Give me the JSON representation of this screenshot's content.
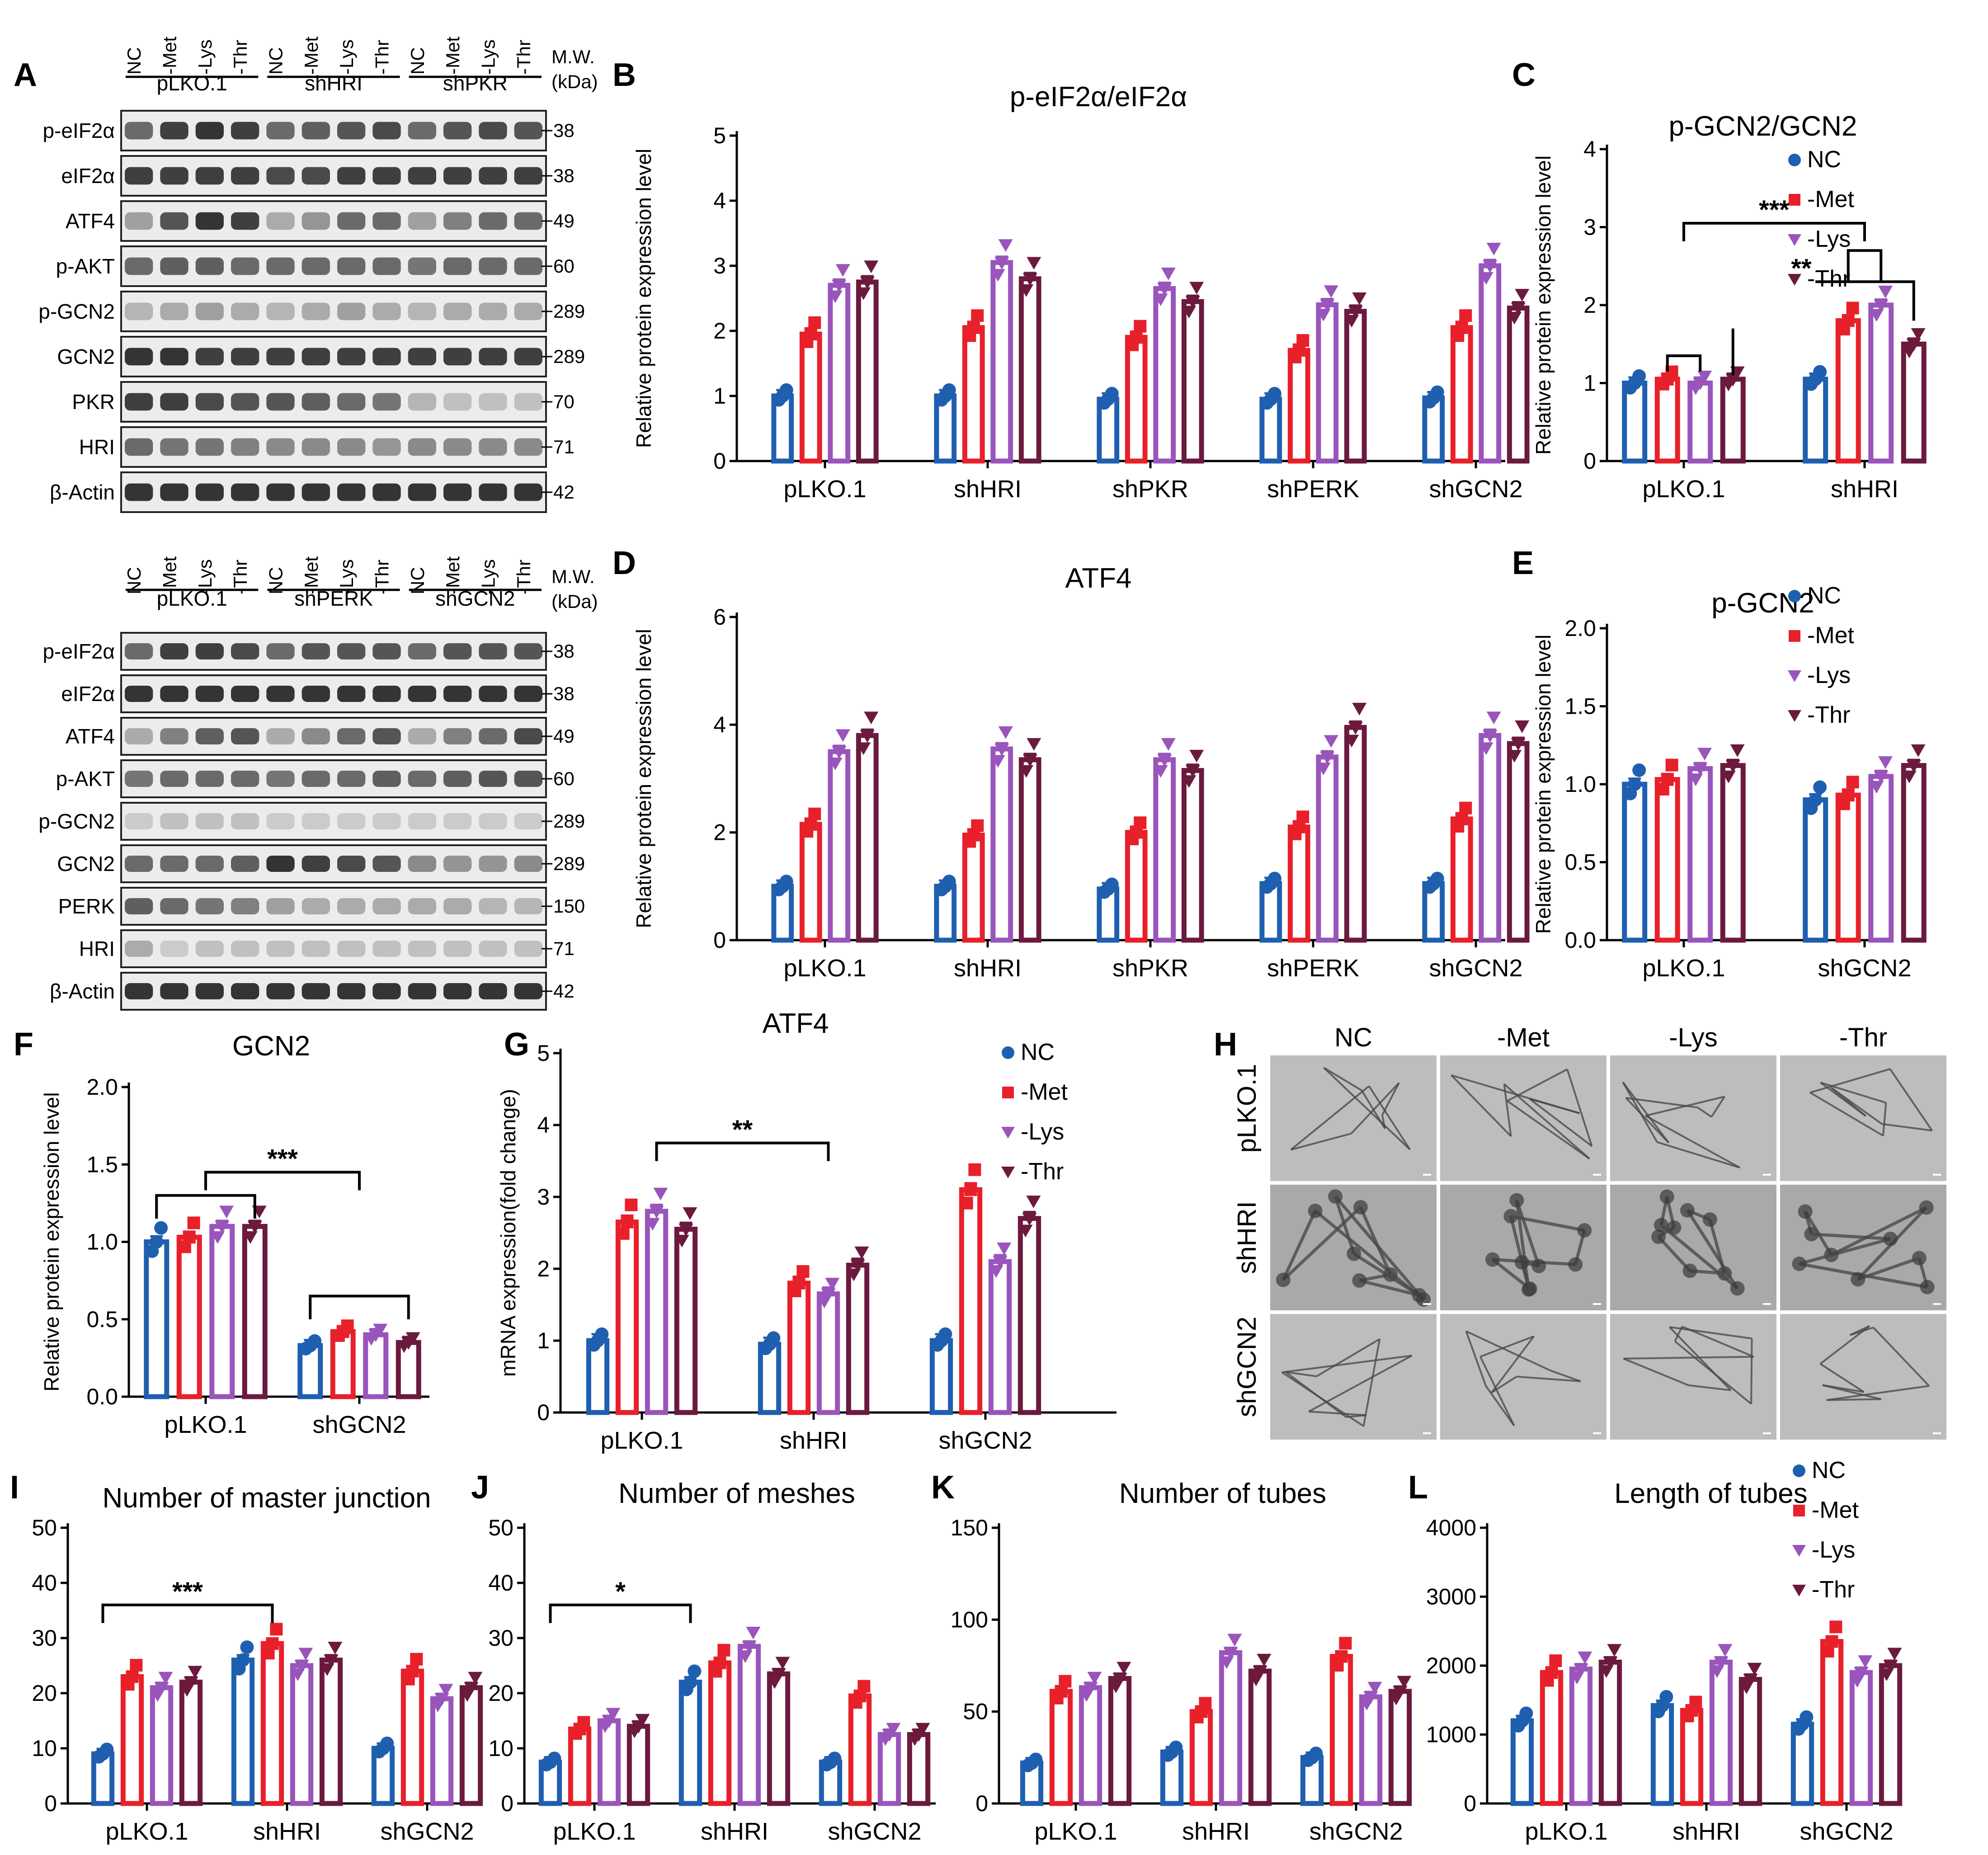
{
  "colors": {
    "NC": "#1f5fb0",
    "-Met": "#e8202a",
    "-Lys": "#9955bb",
    "-Thr": "#6b1a3e"
  },
  "legend": [
    "NC",
    "-Met",
    "-Lys",
    "-Thr"
  ],
  "blots": [
    {
      "panel": "A",
      "lanes": [
        "NC",
        "-Met",
        "-Lys",
        "-Thr",
        "NC",
        "-Met",
        "-Lys",
        "-Thr",
        "NC",
        "-Met",
        "-Lys",
        "-Thr"
      ],
      "groups": [
        "pLKO.1",
        "shHRI",
        "shPKR"
      ],
      "mw_title": "M.W.",
      "mw_unit": "(kDa)",
      "proteins": [
        {
          "name": "p-eIF2α",
          "mw": "38",
          "intensity": [
            0.6,
            0.8,
            0.85,
            0.8,
            0.6,
            0.65,
            0.7,
            0.75,
            0.6,
            0.7,
            0.75,
            0.7
          ]
        },
        {
          "name": "eIF2α",
          "mw": "38",
          "intensity": [
            0.8,
            0.8,
            0.8,
            0.8,
            0.75,
            0.75,
            0.8,
            0.8,
            0.8,
            0.8,
            0.8,
            0.8
          ]
        },
        {
          "name": "ATF4",
          "mw": "49",
          "intensity": [
            0.35,
            0.7,
            0.85,
            0.8,
            0.3,
            0.4,
            0.6,
            0.6,
            0.35,
            0.5,
            0.6,
            0.6
          ]
        },
        {
          "name": "p-AKT",
          "mw": "60",
          "intensity": [
            0.6,
            0.65,
            0.65,
            0.6,
            0.6,
            0.6,
            0.6,
            0.6,
            0.55,
            0.6,
            0.6,
            0.6
          ]
        },
        {
          "name": "p-GCN2",
          "mw": "289",
          "intensity": [
            0.25,
            0.3,
            0.35,
            0.3,
            0.25,
            0.3,
            0.35,
            0.3,
            0.25,
            0.3,
            0.3,
            0.3
          ]
        },
        {
          "name": "GCN2",
          "mw": "289",
          "intensity": [
            0.85,
            0.85,
            0.8,
            0.8,
            0.8,
            0.8,
            0.8,
            0.8,
            0.8,
            0.8,
            0.8,
            0.8
          ]
        },
        {
          "name": "PKR",
          "mw": "70",
          "intensity": [
            0.8,
            0.8,
            0.75,
            0.7,
            0.7,
            0.65,
            0.6,
            0.55,
            0.25,
            0.2,
            0.2,
            0.2
          ]
        },
        {
          "name": "HRI",
          "mw": "71",
          "intensity": [
            0.6,
            0.55,
            0.55,
            0.5,
            0.45,
            0.45,
            0.45,
            0.4,
            0.45,
            0.45,
            0.45,
            0.45
          ]
        },
        {
          "name": "β-Actin",
          "mw": "42",
          "intensity": [
            0.85,
            0.85,
            0.85,
            0.85,
            0.85,
            0.85,
            0.85,
            0.85,
            0.85,
            0.85,
            0.85,
            0.85
          ]
        }
      ]
    },
    {
      "panel": "",
      "lanes": [
        "NC",
        "-Met",
        "-Lys",
        "-Thr",
        "NC",
        "-Met",
        "-Lys",
        "-Thr",
        "NC",
        "-Met",
        "-Lys",
        "-Thr"
      ],
      "groups": [
        "pLKO.1",
        "shPERK",
        "shGCN2"
      ],
      "mw_title": "M.W.",
      "mw_unit": "(kDa)",
      "proteins": [
        {
          "name": "p-eIF2α",
          "mw": "38",
          "intensity": [
            0.6,
            0.8,
            0.8,
            0.75,
            0.6,
            0.7,
            0.7,
            0.7,
            0.6,
            0.7,
            0.7,
            0.7
          ]
        },
        {
          "name": "eIF2α",
          "mw": "38",
          "intensity": [
            0.85,
            0.85,
            0.85,
            0.85,
            0.85,
            0.85,
            0.85,
            0.85,
            0.85,
            0.85,
            0.85,
            0.85
          ]
        },
        {
          "name": "ATF4",
          "mw": "49",
          "intensity": [
            0.3,
            0.5,
            0.65,
            0.7,
            0.3,
            0.45,
            0.6,
            0.7,
            0.3,
            0.5,
            0.6,
            0.75
          ]
        },
        {
          "name": "p-AKT",
          "mw": "60",
          "intensity": [
            0.55,
            0.6,
            0.6,
            0.6,
            0.55,
            0.6,
            0.6,
            0.65,
            0.6,
            0.65,
            0.7,
            0.7
          ]
        },
        {
          "name": "p-GCN2",
          "mw": "289",
          "intensity": [
            0.15,
            0.2,
            0.2,
            0.2,
            0.15,
            0.15,
            0.15,
            0.15,
            0.15,
            0.15,
            0.15,
            0.15
          ]
        },
        {
          "name": "GCN2",
          "mw": "289",
          "intensity": [
            0.6,
            0.6,
            0.6,
            0.65,
            0.85,
            0.8,
            0.75,
            0.7,
            0.45,
            0.4,
            0.4,
            0.45
          ]
        },
        {
          "name": "PERK",
          "mw": "150",
          "intensity": [
            0.65,
            0.6,
            0.55,
            0.5,
            0.35,
            0.3,
            0.3,
            0.3,
            0.3,
            0.3,
            0.25,
            0.25
          ]
        },
        {
          "name": "HRI",
          "mw": "71",
          "intensity": [
            0.3,
            0.15,
            0.2,
            0.2,
            0.2,
            0.2,
            0.2,
            0.2,
            0.2,
            0.2,
            0.2,
            0.2
          ]
        },
        {
          "name": "β-Actin",
          "mw": "42",
          "intensity": [
            0.85,
            0.85,
            0.85,
            0.85,
            0.85,
            0.85,
            0.85,
            0.85,
            0.85,
            0.85,
            0.85,
            0.85
          ]
        }
      ]
    }
  ],
  "micrographs": {
    "panel": "H",
    "columns": [
      "NC",
      "-Met",
      "-Lys",
      "-Thr"
    ],
    "rows": [
      "pLKO.1",
      "shHRI",
      "shGCN2"
    ]
  },
  "chart_data": [
    {
      "panel": "B",
      "type": "bar",
      "title": "p-eIF2α/eIF2α",
      "ylabel": "Relative protein expression level",
      "ylim": [
        0,
        5
      ],
      "yticks": [
        0,
        1,
        2,
        3,
        4,
        5
      ],
      "categories": [
        "pLKO.1",
        "shHRI",
        "shPKR",
        "shPERK",
        "shGCN2"
      ],
      "series": [
        {
          "name": "NC",
          "values": [
            1.0,
            1.0,
            0.95,
            0.95,
            0.97
          ]
        },
        {
          "name": "-Met",
          "values": [
            1.95,
            2.05,
            1.9,
            1.7,
            2.05
          ]
        },
        {
          "name": "-Lys",
          "values": [
            2.7,
            3.05,
            2.65,
            2.4,
            3.0
          ]
        },
        {
          "name": "-Thr",
          "values": [
            2.75,
            2.8,
            2.45,
            2.3,
            2.35
          ]
        }
      ],
      "legend": false,
      "annotations": []
    },
    {
      "panel": "C",
      "type": "bar",
      "title": "p-GCN2/GCN2",
      "ylabel": "Relative protein expression level",
      "ylim": [
        0,
        4
      ],
      "yticks": [
        0,
        1,
        2,
        3,
        4
      ],
      "categories": [
        "pLKO.1",
        "shHRI"
      ],
      "series": [
        {
          "name": "NC",
          "values": [
            1.0,
            1.05
          ]
        },
        {
          "name": "-Met",
          "values": [
            1.05,
            1.8
          ]
        },
        {
          "name": "-Lys",
          "values": [
            1.0,
            2.0
          ]
        },
        {
          "name": "-Thr",
          "values": [
            1.05,
            1.5
          ]
        }
      ],
      "legend": true,
      "annotations": [
        "***",
        "**"
      ]
    },
    {
      "panel": "D",
      "type": "bar",
      "title": "ATF4",
      "ylabel": "Relative protein expression level",
      "ylim": [
        0,
        6
      ],
      "yticks": [
        0,
        2,
        4,
        6
      ],
      "categories": [
        "pLKO.1",
        "shHRI",
        "shPKR",
        "shPERK",
        "shGCN2"
      ],
      "series": [
        {
          "name": "NC",
          "values": [
            1.0,
            1.0,
            0.95,
            1.05,
            1.05
          ]
        },
        {
          "name": "-Met",
          "values": [
            2.15,
            1.95,
            2.0,
            2.1,
            2.25
          ]
        },
        {
          "name": "-Lys",
          "values": [
            3.5,
            3.55,
            3.35,
            3.4,
            3.8
          ]
        },
        {
          "name": "-Thr",
          "values": [
            3.8,
            3.35,
            3.15,
            3.95,
            3.65
          ]
        }
      ],
      "legend": false,
      "annotations": []
    },
    {
      "panel": "E",
      "type": "bar",
      "title": "p-GCN2",
      "ylabel": "Relative protein expression level",
      "ylim": [
        0,
        2
      ],
      "yticks": [
        "0.0",
        "0.5",
        "1.0",
        "1.5",
        "2.0"
      ],
      "categories": [
        "pLKO.1",
        "shGCN2"
      ],
      "series": [
        {
          "name": "NC",
          "values": [
            1.0,
            0.9
          ]
        },
        {
          "name": "-Met",
          "values": [
            1.03,
            0.93
          ]
        },
        {
          "name": "-Lys",
          "values": [
            1.1,
            1.05
          ]
        },
        {
          "name": "-Thr",
          "values": [
            1.12,
            1.12
          ]
        }
      ],
      "legend": true,
      "annotations": []
    },
    {
      "panel": "F",
      "type": "bar",
      "title": "GCN2",
      "ylabel": "Relative protein expression level",
      "ylim": [
        0,
        2
      ],
      "yticks": [
        "0.0",
        "0.5",
        "1.0",
        "1.5",
        "2.0"
      ],
      "categories": [
        "pLKO.1",
        "shGCN2"
      ],
      "series": [
        {
          "name": "NC",
          "values": [
            1.0,
            0.33
          ]
        },
        {
          "name": "-Met",
          "values": [
            1.03,
            0.42
          ]
        },
        {
          "name": "-Lys",
          "values": [
            1.1,
            0.4
          ]
        },
        {
          "name": "-Thr",
          "values": [
            1.1,
            0.35
          ]
        }
      ],
      "legend": false,
      "annotations": [
        "***"
      ]
    },
    {
      "panel": "G",
      "type": "bar",
      "title": "ATF4",
      "ylabel": "mRNA expression(fold change)",
      "ylim": [
        0,
        5
      ],
      "yticks": [
        0,
        1,
        2,
        3,
        4,
        5
      ],
      "categories": [
        "pLKO.1",
        "shHRI",
        "shGCN2"
      ],
      "series": [
        {
          "name": "NC",
          "values": [
            1.0,
            0.95,
            1.0
          ]
        },
        {
          "name": "-Met",
          "values": [
            2.65,
            1.8,
            3.1
          ]
        },
        {
          "name": "-Lys",
          "values": [
            2.8,
            1.65,
            2.1
          ]
        },
        {
          "name": "-Thr",
          "values": [
            2.55,
            2.05,
            2.7
          ]
        }
      ],
      "legend": true,
      "annotations": [
        "**"
      ]
    },
    {
      "panel": "I",
      "type": "bar",
      "title": "Number of master junction",
      "ylabel": "",
      "ylim": [
        0,
        50
      ],
      "yticks": [
        0,
        10,
        20,
        30,
        40,
        50
      ],
      "categories": [
        "pLKO.1",
        "shHRI",
        "shGCN2"
      ],
      "series": [
        {
          "name": "NC",
          "values": [
            9,
            26,
            10
          ]
        },
        {
          "name": "-Met",
          "values": [
            23,
            29,
            24
          ]
        },
        {
          "name": "-Lys",
          "values": [
            21,
            25,
            19
          ]
        },
        {
          "name": "-Thr",
          "values": [
            22,
            26,
            21
          ]
        }
      ],
      "legend": false,
      "annotations": [
        "***"
      ]
    },
    {
      "panel": "J",
      "type": "bar",
      "title": "Number of meshes",
      "ylabel": "",
      "ylim": [
        0,
        50
      ],
      "yticks": [
        0,
        10,
        20,
        30,
        40,
        50
      ],
      "categories": [
        "pLKO.1",
        "shHRI",
        "shGCN2"
      ],
      "series": [
        {
          "name": "NC",
          "values": [
            7.5,
            22,
            7.5
          ]
        },
        {
          "name": "-Met",
          "values": [
            13.5,
            25.5,
            19.5
          ]
        },
        {
          "name": "-Lys",
          "values": [
            15,
            28.5,
            12.5
          ]
        },
        {
          "name": "-Thr",
          "values": [
            14,
            23.5,
            12.5
          ]
        }
      ],
      "legend": false,
      "annotations": [
        "*"
      ]
    },
    {
      "panel": "K",
      "type": "bar",
      "title": "Number of tubes",
      "ylabel": "",
      "ylim": [
        0,
        150
      ],
      "yticks": [
        0,
        50,
        100,
        150
      ],
      "categories": [
        "pLKO.1",
        "shHRI",
        "shGCN2"
      ],
      "series": [
        {
          "name": "NC",
          "values": [
            22,
            28,
            25
          ]
        },
        {
          "name": "-Met",
          "values": [
            61,
            50,
            80
          ]
        },
        {
          "name": "-Lys",
          "values": [
            63,
            82,
            58
          ]
        },
        {
          "name": "-Thr",
          "values": [
            68,
            72,
            61
          ]
        }
      ],
      "legend": false,
      "annotations": []
    },
    {
      "panel": "L",
      "type": "bar",
      "title": "Length of tubes",
      "ylabel": "",
      "ylim": [
        0,
        4000
      ],
      "yticks": [
        0,
        1000,
        2000,
        3000,
        4000
      ],
      "categories": [
        "pLKO.1",
        "shHRI",
        "shGCN2"
      ],
      "series": [
        {
          "name": "NC",
          "values": [
            1200,
            1420,
            1150
          ]
        },
        {
          "name": "-Met",
          "values": [
            1900,
            1350,
            2350
          ]
        },
        {
          "name": "-Lys",
          "values": [
            1950,
            2050,
            1900
          ]
        },
        {
          "name": "-Thr",
          "values": [
            2050,
            1800,
            2000
          ]
        }
      ],
      "legend": true,
      "annotations": []
    }
  ]
}
